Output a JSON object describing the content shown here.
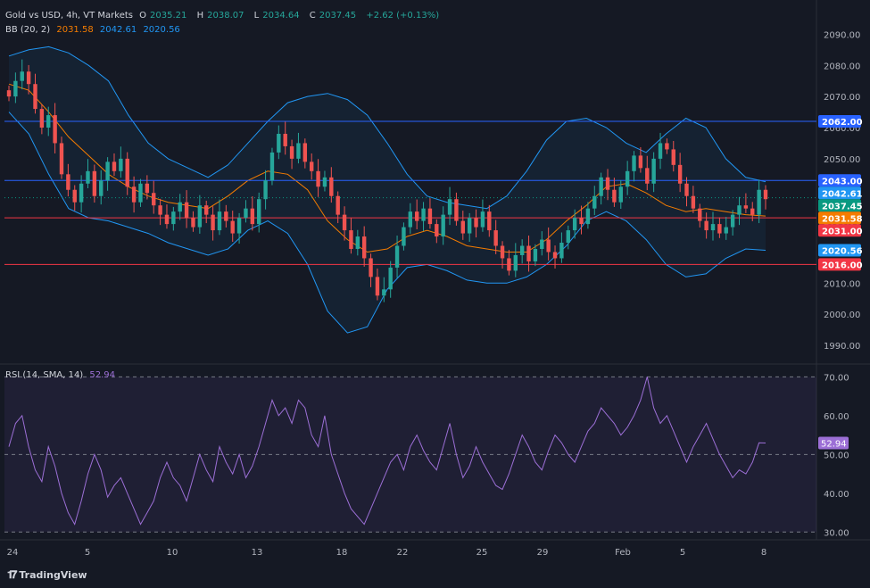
{
  "header": {
    "symbol": "Gold vs USD, 4h, VT Markets",
    "open_label": "O",
    "open": "2035.21",
    "high_label": "H",
    "high": "2038.07",
    "low_label": "L",
    "low": "2034.64",
    "close_label": "C",
    "close": "2037.45",
    "change": "+2.62 (+0.13%)"
  },
  "bb_legend": {
    "name": "BB (20, 2)",
    "basis": "2031.58",
    "upper": "2042.61",
    "lower": "2020.56"
  },
  "rsi_legend": {
    "name": "RSI (14, SMA, 14)",
    "value": "52.94"
  },
  "colors": {
    "background": "#151924",
    "up": "#26a69a",
    "down": "#ef5350",
    "bb_basis": "#f57c00",
    "bb_band": "#2962ff",
    "rsi": "#9c6fd6",
    "resistance": "#2962ff",
    "support": "#f23645"
  },
  "brand": "TradingView",
  "chart_data": [
    {
      "type": "candlestick",
      "y_ticks": [
        1990,
        2000,
        2010,
        2020,
        2030,
        2040,
        2050,
        2060,
        2070,
        2080,
        2090
      ],
      "y_tick_labels": [
        "1990.00",
        "2000.00",
        "2010.00",
        "2020.00",
        "2030.00",
        "2040.00",
        "2050.00",
        "2060.00",
        "2070.00",
        "2080.00",
        "2090.00"
      ],
      "x_labels": [
        "24",
        "5",
        "10",
        "13",
        "18",
        "22",
        "25",
        "29",
        "Feb",
        "5",
        "8"
      ],
      "ylim": [
        1984,
        2097
      ],
      "horizontal_levels": [
        {
          "value": 2062,
          "label": "2062.00",
          "color": "#2962ff"
        },
        {
          "value": 2043,
          "label": "2043.00",
          "color": "#2962ff"
        },
        {
          "value": 2031,
          "label": "2031.00",
          "color": "#f23645"
        },
        {
          "value": 2016,
          "label": "2016.00",
          "color": "#f23645"
        }
      ],
      "price_tags": [
        {
          "value": 2042.61,
          "label": "2042.61",
          "color": "#2196f3"
        },
        {
          "value": 2037.45,
          "label": "2037.45",
          "color": "#089981"
        },
        {
          "value": 2031.58,
          "label": "2031.58",
          "color": "#f57c00"
        },
        {
          "value": 2020.56,
          "label": "2020.56",
          "color": "#2196f3"
        }
      ],
      "closes": [
        2070,
        2075,
        2078,
        2074,
        2066,
        2060,
        2064,
        2055,
        2045,
        2040,
        2036,
        2042,
        2046,
        2038,
        2043,
        2049,
        2046,
        2050,
        2041,
        2036,
        2042,
        2039,
        2035,
        2032,
        2029,
        2033,
        2036,
        2031,
        2028,
        2035,
        2032,
        2027,
        2033,
        2030,
        2026,
        2031,
        2034,
        2029,
        2037,
        2043,
        2052,
        2058,
        2054,
        2050,
        2055,
        2049,
        2046,
        2041,
        2044,
        2038,
        2032,
        2027,
        2021,
        2025,
        2018,
        2012,
        2006,
        2008,
        2015,
        2022,
        2028,
        2033,
        2030,
        2034,
        2029,
        2025,
        2032,
        2037,
        2030,
        2026,
        2031,
        2028,
        2033,
        2027,
        2022,
        2018,
        2014,
        2019,
        2022,
        2017,
        2021,
        2024,
        2020,
        2018,
        2023,
        2027,
        2031,
        2029,
        2034,
        2038,
        2044,
        2040,
        2036,
        2041,
        2046,
        2051,
        2047,
        2042,
        2050,
        2055,
        2053,
        2048,
        2042,
        2038,
        2034,
        2030,
        2027,
        2029,
        2026,
        2028,
        2032,
        2035,
        2034,
        2032,
        2040,
        2037
      ],
      "opens_high_low_note": "rendered by script",
      "bb_upper_samples": [
        2083,
        2085,
        2086,
        2084,
        2080,
        2075,
        2064,
        2055,
        2050,
        2047,
        2044,
        2048,
        2055,
        2062,
        2068,
        2070,
        2071,
        2069,
        2064,
        2055,
        2045,
        2038,
        2036,
        2035,
        2034,
        2038,
        2046,
        2056,
        2062,
        2063,
        2060,
        2055,
        2052,
        2058,
        2063,
        2060,
        2050,
        2044,
        2042.61
      ],
      "bb_basis_samples": [
        2074,
        2072,
        2065,
        2057,
        2051,
        2045,
        2041,
        2038,
        2036,
        2035,
        2034,
        2038,
        2043,
        2046,
        2045,
        2040,
        2030,
        2024,
        2020,
        2021,
        2025,
        2027,
        2025,
        2022,
        2021,
        2020,
        2020,
        2024,
        2030,
        2035,
        2041,
        2042,
        2039,
        2035,
        2033,
        2034,
        2033,
        2032,
        2031.58
      ],
      "bb_lower_samples": [
        2065,
        2058,
        2045,
        2034,
        2031,
        2030,
        2028,
        2026,
        2023,
        2021,
        2019,
        2021,
        2027,
        2030,
        2026,
        2016,
        2001,
        1994,
        1996,
        2008,
        2015,
        2016,
        2014,
        2011,
        2010,
        2010,
        2012,
        2016,
        2022,
        2030,
        2033,
        2030,
        2024,
        2016,
        2012,
        2013,
        2018,
        2021,
        2020.56
      ]
    },
    {
      "type": "line",
      "name": "RSI",
      "ylim": [
        28,
        71
      ],
      "y_ticks": [
        30,
        40,
        50,
        60,
        70
      ],
      "y_tick_labels": [
        "30.00",
        "40.00",
        "50.00",
        "60.00",
        "70.00"
      ],
      "bands": [
        30,
        50,
        70
      ],
      "values": [
        52,
        58,
        60,
        52,
        46,
        43,
        52,
        47,
        40,
        35,
        32,
        38,
        45,
        50,
        46,
        39,
        42,
        44,
        40,
        36,
        32,
        35,
        38,
        44,
        48,
        44,
        42,
        38,
        44,
        50,
        46,
        43,
        52,
        48,
        45,
        50,
        44,
        47,
        52,
        58,
        64,
        60,
        62,
        58,
        64,
        62,
        55,
        52,
        60,
        50,
        45,
        40,
        36,
        34,
        32,
        36,
        40,
        44,
        48,
        50,
        46,
        52,
        55,
        51,
        48,
        46,
        52,
        58,
        50,
        44,
        47,
        52,
        48,
        45,
        42,
        41,
        45,
        50,
        55,
        52,
        48,
        46,
        51,
        55,
        53,
        50,
        48,
        52,
        56,
        58,
        62,
        60,
        58,
        55,
        57,
        60,
        64,
        70,
        62,
        58,
        60,
        56,
        52,
        48,
        52,
        55,
        58,
        54,
        50,
        47,
        44,
        46,
        45,
        48,
        53,
        52.94
      ]
    }
  ]
}
